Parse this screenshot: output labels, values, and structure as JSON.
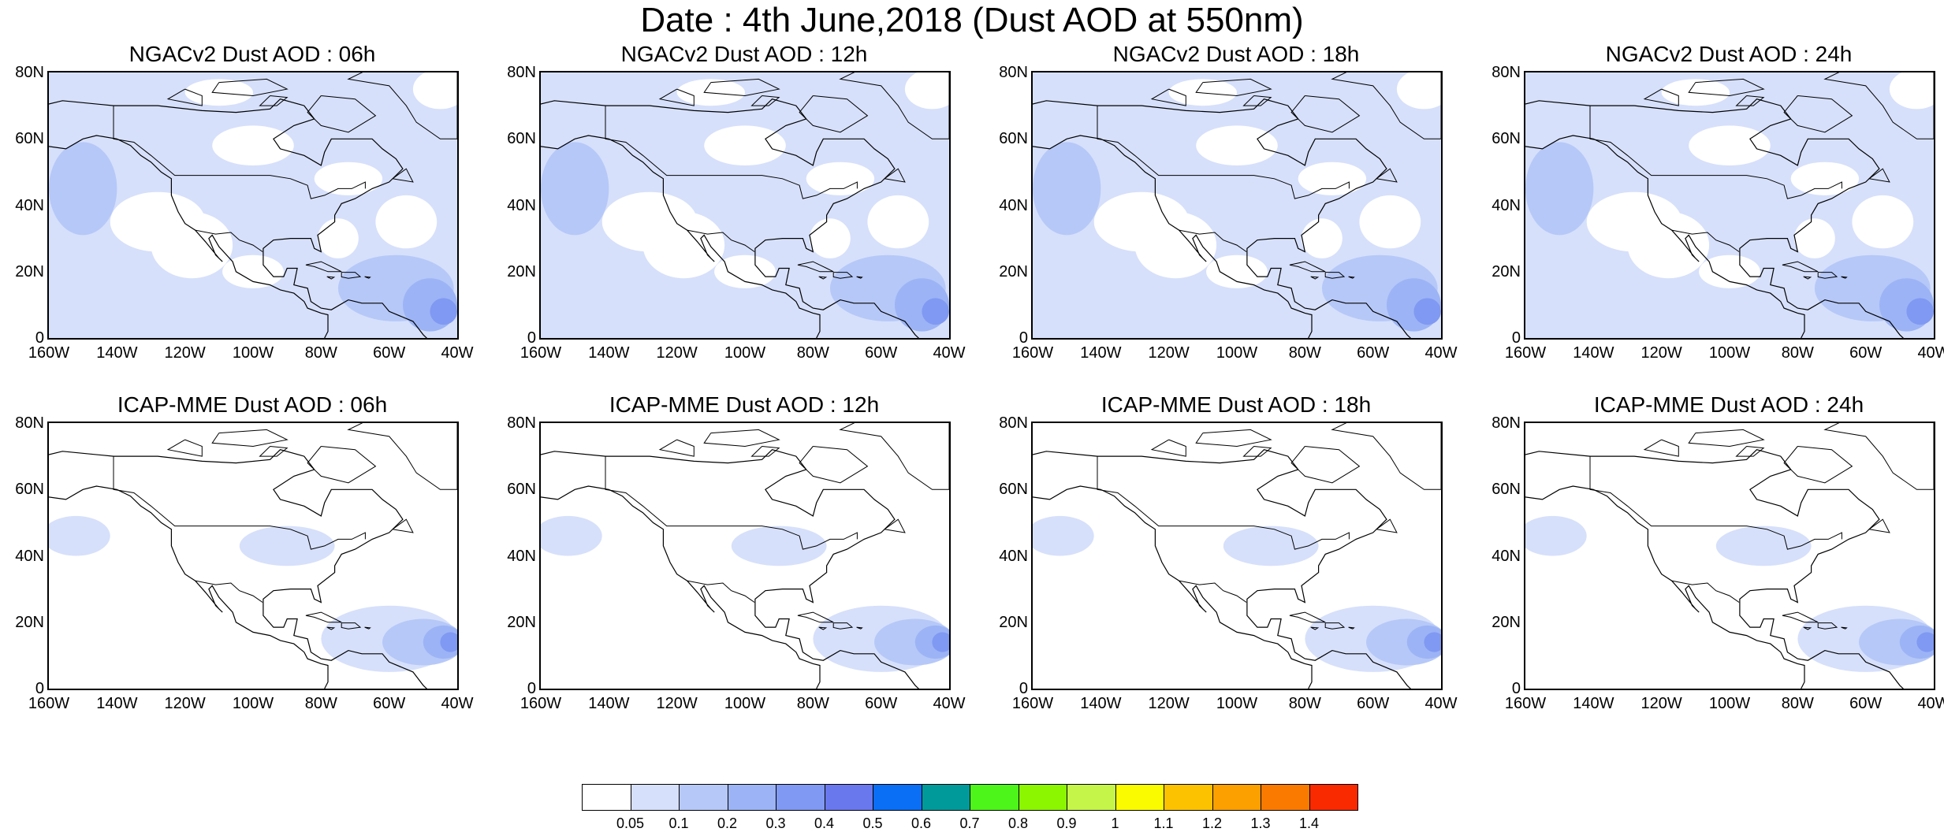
{
  "figure": {
    "title": "Date : 4th June,2018 (Dust AOD at 550nm)",
    "rows": [
      {
        "model": "NGACv2",
        "panels": [
          {
            "title": "NGACv2 Dust AOD : 06h"
          },
          {
            "title": "NGACv2 Dust AOD : 12h"
          },
          {
            "title": "NGACv2 Dust AOD : 18h"
          },
          {
            "title": "NGACv2 Dust AOD : 24h"
          }
        ]
      },
      {
        "model": "ICAP-MME",
        "panels": [
          {
            "title": "ICAP-MME Dust AOD : 06h"
          },
          {
            "title": "ICAP-MME Dust AOD : 12h"
          },
          {
            "title": "ICAP-MME Dust AOD : 18h"
          },
          {
            "title": "ICAP-MME Dust AOD : 24h"
          }
        ]
      }
    ],
    "y_ticks": [
      "80N",
      "60N",
      "40N",
      "20N",
      "0"
    ],
    "x_ticks": [
      "160W",
      "140W",
      "120W",
      "100W",
      "80W",
      "60W",
      "40W"
    ],
    "map_extent": {
      "lon_min": -160,
      "lon_max": -40,
      "lat_min": 0,
      "lat_max": 80
    },
    "colorbar": {
      "labels": [
        "0.05",
        "0.1",
        "0.2",
        "0.3",
        "0.4",
        "0.5",
        "0.6",
        "0.7",
        "0.8",
        "0.9",
        "1",
        "1.1",
        "1.2",
        "1.3",
        "1.4"
      ],
      "colors": [
        "#ffffff",
        "#d6e0fb",
        "#b6c8f8",
        "#9cb4f5",
        "#8099f2",
        "#6a78ee",
        "#0a6ff5",
        "#009a9a",
        "#4df51a",
        "#8cf500",
        "#c6f54a",
        "#fbfb00",
        "#fcc200",
        "#fca000",
        "#fa7a00",
        "#fa2a00"
      ]
    }
  }
}
